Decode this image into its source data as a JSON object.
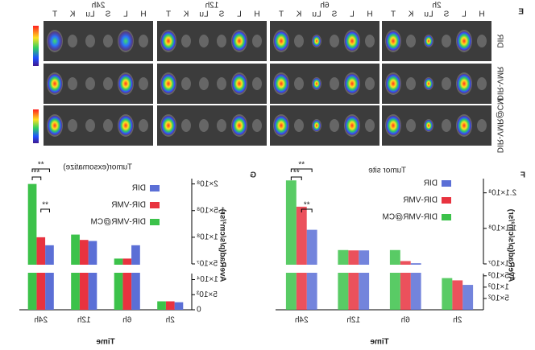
{
  "panel_e": {
    "label": "E",
    "timepoints": [
      "2h",
      "6h",
      "12h",
      "24h"
    ],
    "organs": [
      "H",
      "L",
      "S",
      "Lu",
      "K",
      "T"
    ],
    "groups": [
      "DIR",
      "DIR-VMR",
      "DIR-VMR@CM"
    ]
  },
  "chart_data": [
    {
      "type": "bar",
      "panel_label": "F",
      "title": "Tumor site",
      "xlabel": "Time",
      "ylabel": "AveRad(p/s/cm²/sr)",
      "categories": [
        "2h",
        "6h",
        "12h",
        "24h"
      ],
      "series": [
        {
          "name": "DIR",
          "color": "#5b6fd6",
          "values": [
            1100,
            12000000,
            48000000,
            106000000
          ]
        },
        {
          "name": "DIR-VMR",
          "color": "#e8333f",
          "values": [
            1300,
            18000000,
            48000000,
            171000000
          ]
        },
        {
          "name": "DIR-VMR@CM",
          "color": "#3cc24a",
          "values": [
            1400,
            49000000,
            49000000,
            245000000
          ]
        }
      ],
      "ylim_lower": [
        0,
        1600
      ],
      "yticks_lower": [
        {
          "value": 500,
          "label": "5×10²"
        },
        {
          "value": 1000,
          "label": "1×10³"
        },
        {
          "value": 1500,
          "label": "1.5×10³"
        }
      ],
      "ylim_upper": [
        10000000,
        250000000
      ],
      "yticks_upper": [
        {
          "value": 10000000,
          "label": "1×10⁷"
        },
        {
          "value": 110000000,
          "label": "1.1×10⁸"
        },
        {
          "value": 210000000,
          "label": "2.1×10⁸"
        }
      ],
      "annotations": [
        "**",
        "**",
        "**"
      ]
    },
    {
      "type": "bar",
      "panel_label": "G",
      "title": "Tumor(exsomatize)",
      "xlabel": "Time",
      "ylabel": "AveRad(p/s/cm²/sr)",
      "categories": [
        "2h",
        "6h",
        "12h",
        "24h"
      ],
      "series": [
        {
          "name": "DIR",
          "color": "#5b6fd6",
          "values": [
            2500,
            85000000,
            93000000,
            85000000
          ]
        },
        {
          "name": "DIR-VMR",
          "color": "#e8333f",
          "values": [
            2800,
            60000000,
            95000000,
            100000000
          ]
        },
        {
          "name": "DIR-VMR@CM",
          "color": "#3cc24a",
          "values": [
            2800,
            60000000,
            105000000,
            200000000
          ]
        }
      ],
      "ylim_lower": [
        0,
        12000
      ],
      "yticks_lower": [
        0,
        {
          "value": 5000,
          "label": "5×10³"
        },
        {
          "value": 10000,
          "label": "1×10⁴"
        }
      ],
      "ylim_upper": [
        50000000,
        210000000
      ],
      "yticks_upper": [
        {
          "value": 50000000,
          "label": "5×10⁷"
        },
        {
          "value": 100000000,
          "label": "1×10⁸"
        },
        {
          "value": 150000000,
          "label": "1.5×10⁸"
        },
        {
          "value": 200000000,
          "label": "2×10⁸"
        }
      ],
      "annotations": [
        "**",
        "**",
        "**"
      ]
    }
  ]
}
